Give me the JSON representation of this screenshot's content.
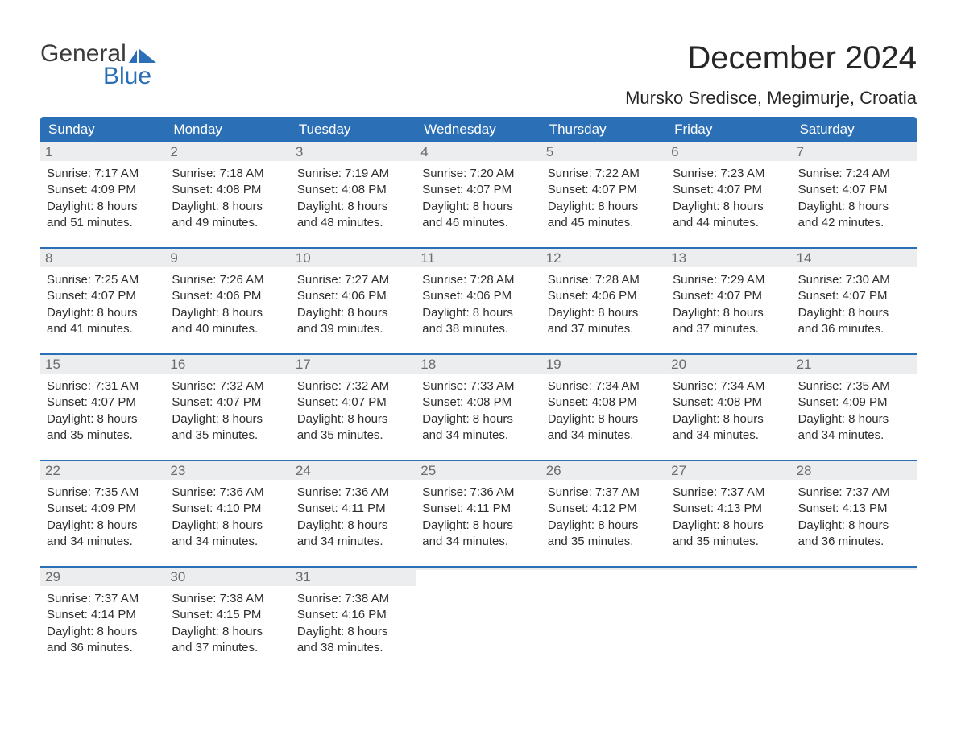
{
  "logo": {
    "word1": "General",
    "word2": "Blue",
    "word1_color": "#3b3b3b",
    "word2_color": "#2b6fb6",
    "flag_color": "#2b6fb6"
  },
  "title": "December 2024",
  "location": "Mursko Sredisce, Megimurje, Croatia",
  "colors": {
    "header_bg": "#2b6fb6",
    "header_fg": "#ffffff",
    "daynum_bg": "#ecedee",
    "daynum_fg": "#6b6b6b",
    "body_fg": "#2e2e2e",
    "week_border": "#2b6fb6",
    "page_bg": "#ffffff"
  },
  "typography": {
    "title_fontsize": 40,
    "location_fontsize": 22,
    "dow_fontsize": 17,
    "daynum_fontsize": 17,
    "body_fontsize": 15
  },
  "days_of_week": [
    "Sunday",
    "Monday",
    "Tuesday",
    "Wednesday",
    "Thursday",
    "Friday",
    "Saturday"
  ],
  "weeks": [
    [
      {
        "n": "1",
        "sunrise": "Sunrise: 7:17 AM",
        "sunset": "Sunset: 4:09 PM",
        "day1": "Daylight: 8 hours",
        "day2": "and 51 minutes."
      },
      {
        "n": "2",
        "sunrise": "Sunrise: 7:18 AM",
        "sunset": "Sunset: 4:08 PM",
        "day1": "Daylight: 8 hours",
        "day2": "and 49 minutes."
      },
      {
        "n": "3",
        "sunrise": "Sunrise: 7:19 AM",
        "sunset": "Sunset: 4:08 PM",
        "day1": "Daylight: 8 hours",
        "day2": "and 48 minutes."
      },
      {
        "n": "4",
        "sunrise": "Sunrise: 7:20 AM",
        "sunset": "Sunset: 4:07 PM",
        "day1": "Daylight: 8 hours",
        "day2": "and 46 minutes."
      },
      {
        "n": "5",
        "sunrise": "Sunrise: 7:22 AM",
        "sunset": "Sunset: 4:07 PM",
        "day1": "Daylight: 8 hours",
        "day2": "and 45 minutes."
      },
      {
        "n": "6",
        "sunrise": "Sunrise: 7:23 AM",
        "sunset": "Sunset: 4:07 PM",
        "day1": "Daylight: 8 hours",
        "day2": "and 44 minutes."
      },
      {
        "n": "7",
        "sunrise": "Sunrise: 7:24 AM",
        "sunset": "Sunset: 4:07 PM",
        "day1": "Daylight: 8 hours",
        "day2": "and 42 minutes."
      }
    ],
    [
      {
        "n": "8",
        "sunrise": "Sunrise: 7:25 AM",
        "sunset": "Sunset: 4:07 PM",
        "day1": "Daylight: 8 hours",
        "day2": "and 41 minutes."
      },
      {
        "n": "9",
        "sunrise": "Sunrise: 7:26 AM",
        "sunset": "Sunset: 4:06 PM",
        "day1": "Daylight: 8 hours",
        "day2": "and 40 minutes."
      },
      {
        "n": "10",
        "sunrise": "Sunrise: 7:27 AM",
        "sunset": "Sunset: 4:06 PM",
        "day1": "Daylight: 8 hours",
        "day2": "and 39 minutes."
      },
      {
        "n": "11",
        "sunrise": "Sunrise: 7:28 AM",
        "sunset": "Sunset: 4:06 PM",
        "day1": "Daylight: 8 hours",
        "day2": "and 38 minutes."
      },
      {
        "n": "12",
        "sunrise": "Sunrise: 7:28 AM",
        "sunset": "Sunset: 4:06 PM",
        "day1": "Daylight: 8 hours",
        "day2": "and 37 minutes."
      },
      {
        "n": "13",
        "sunrise": "Sunrise: 7:29 AM",
        "sunset": "Sunset: 4:07 PM",
        "day1": "Daylight: 8 hours",
        "day2": "and 37 minutes."
      },
      {
        "n": "14",
        "sunrise": "Sunrise: 7:30 AM",
        "sunset": "Sunset: 4:07 PM",
        "day1": "Daylight: 8 hours",
        "day2": "and 36 minutes."
      }
    ],
    [
      {
        "n": "15",
        "sunrise": "Sunrise: 7:31 AM",
        "sunset": "Sunset: 4:07 PM",
        "day1": "Daylight: 8 hours",
        "day2": "and 35 minutes."
      },
      {
        "n": "16",
        "sunrise": "Sunrise: 7:32 AM",
        "sunset": "Sunset: 4:07 PM",
        "day1": "Daylight: 8 hours",
        "day2": "and 35 minutes."
      },
      {
        "n": "17",
        "sunrise": "Sunrise: 7:32 AM",
        "sunset": "Sunset: 4:07 PM",
        "day1": "Daylight: 8 hours",
        "day2": "and 35 minutes."
      },
      {
        "n": "18",
        "sunrise": "Sunrise: 7:33 AM",
        "sunset": "Sunset: 4:08 PM",
        "day1": "Daylight: 8 hours",
        "day2": "and 34 minutes."
      },
      {
        "n": "19",
        "sunrise": "Sunrise: 7:34 AM",
        "sunset": "Sunset: 4:08 PM",
        "day1": "Daylight: 8 hours",
        "day2": "and 34 minutes."
      },
      {
        "n": "20",
        "sunrise": "Sunrise: 7:34 AM",
        "sunset": "Sunset: 4:08 PM",
        "day1": "Daylight: 8 hours",
        "day2": "and 34 minutes."
      },
      {
        "n": "21",
        "sunrise": "Sunrise: 7:35 AM",
        "sunset": "Sunset: 4:09 PM",
        "day1": "Daylight: 8 hours",
        "day2": "and 34 minutes."
      }
    ],
    [
      {
        "n": "22",
        "sunrise": "Sunrise: 7:35 AM",
        "sunset": "Sunset: 4:09 PM",
        "day1": "Daylight: 8 hours",
        "day2": "and 34 minutes."
      },
      {
        "n": "23",
        "sunrise": "Sunrise: 7:36 AM",
        "sunset": "Sunset: 4:10 PM",
        "day1": "Daylight: 8 hours",
        "day2": "and 34 minutes."
      },
      {
        "n": "24",
        "sunrise": "Sunrise: 7:36 AM",
        "sunset": "Sunset: 4:11 PM",
        "day1": "Daylight: 8 hours",
        "day2": "and 34 minutes."
      },
      {
        "n": "25",
        "sunrise": "Sunrise: 7:36 AM",
        "sunset": "Sunset: 4:11 PM",
        "day1": "Daylight: 8 hours",
        "day2": "and 34 minutes."
      },
      {
        "n": "26",
        "sunrise": "Sunrise: 7:37 AM",
        "sunset": "Sunset: 4:12 PM",
        "day1": "Daylight: 8 hours",
        "day2": "and 35 minutes."
      },
      {
        "n": "27",
        "sunrise": "Sunrise: 7:37 AM",
        "sunset": "Sunset: 4:13 PM",
        "day1": "Daylight: 8 hours",
        "day2": "and 35 minutes."
      },
      {
        "n": "28",
        "sunrise": "Sunrise: 7:37 AM",
        "sunset": "Sunset: 4:13 PM",
        "day1": "Daylight: 8 hours",
        "day2": "and 36 minutes."
      }
    ],
    [
      {
        "n": "29",
        "sunrise": "Sunrise: 7:37 AM",
        "sunset": "Sunset: 4:14 PM",
        "day1": "Daylight: 8 hours",
        "day2": "and 36 minutes."
      },
      {
        "n": "30",
        "sunrise": "Sunrise: 7:38 AM",
        "sunset": "Sunset: 4:15 PM",
        "day1": "Daylight: 8 hours",
        "day2": "and 37 minutes."
      },
      {
        "n": "31",
        "sunrise": "Sunrise: 7:38 AM",
        "sunset": "Sunset: 4:16 PM",
        "day1": "Daylight: 8 hours",
        "day2": "and 38 minutes."
      },
      {
        "empty": true
      },
      {
        "empty": true
      },
      {
        "empty": true
      },
      {
        "empty": true
      }
    ]
  ]
}
